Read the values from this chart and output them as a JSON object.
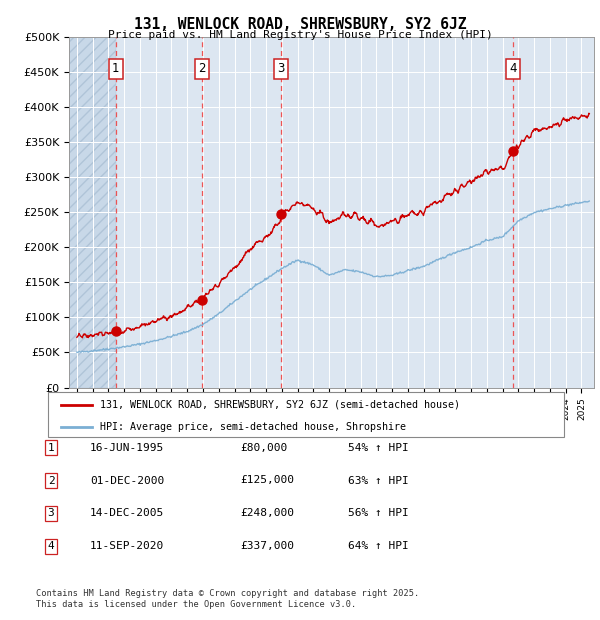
{
  "title": "131, WENLOCK ROAD, SHREWSBURY, SY2 6JZ",
  "subtitle": "Price paid vs. HM Land Registry's House Price Index (HPI)",
  "ylim": [
    0,
    500000
  ],
  "yticks": [
    0,
    50000,
    100000,
    150000,
    200000,
    250000,
    300000,
    350000,
    400000,
    450000,
    500000
  ],
  "ytick_labels": [
    "£0",
    "£50K",
    "£100K",
    "£150K",
    "£200K",
    "£250K",
    "£300K",
    "£350K",
    "£400K",
    "£450K",
    "£500K"
  ],
  "trans_dates": [
    1995.46,
    2000.92,
    2005.95,
    2020.69
  ],
  "trans_prices": [
    80000,
    125000,
    248000,
    337000
  ],
  "trans_labels": [
    "1",
    "2",
    "3",
    "4"
  ],
  "transaction_table": [
    {
      "num": "1",
      "date": "16-JUN-1995",
      "price": "£80,000",
      "hpi": "54% ↑ HPI"
    },
    {
      "num": "2",
      "date": "01-DEC-2000",
      "price": "£125,000",
      "hpi": "63% ↑ HPI"
    },
    {
      "num": "3",
      "date": "14-DEC-2005",
      "price": "£248,000",
      "hpi": "56% ↑ HPI"
    },
    {
      "num": "4",
      "date": "11-SEP-2020",
      "price": "£337,000",
      "hpi": "64% ↑ HPI"
    }
  ],
  "legend_line1": "131, WENLOCK ROAD, SHREWSBURY, SY2 6JZ (semi-detached house)",
  "legend_line2": "HPI: Average price, semi-detached house, Shropshire",
  "footer": "Contains HM Land Registry data © Crown copyright and database right 2025.\nThis data is licensed under the Open Government Licence v3.0.",
  "plot_bg_color": "#dce6f1",
  "line_color_red": "#cc0000",
  "line_color_blue": "#7bafd4",
  "vline_color": "#ee4444",
  "xmin": 1992.5,
  "xmax": 2025.8,
  "hpi_years": [
    1993,
    1994,
    1995,
    1996,
    1997,
    1998,
    1999,
    2000,
    2001,
    2002,
    2003,
    2004,
    2005,
    2006,
    2007,
    2008,
    2009,
    2010,
    2011,
    2012,
    2013,
    2014,
    2015,
    2016,
    2017,
    2018,
    2019,
    2020,
    2021,
    2022,
    2023,
    2024,
    2025.5
  ],
  "hpi_values": [
    50000,
    52500,
    55000,
    58000,
    62000,
    67000,
    73000,
    80000,
    90000,
    105000,
    123000,
    140000,
    155000,
    170000,
    182000,
    175000,
    160000,
    168000,
    165000,
    158000,
    160000,
    167000,
    173000,
    183000,
    193000,
    200000,
    210000,
    215000,
    238000,
    250000,
    255000,
    260000,
    266000
  ]
}
